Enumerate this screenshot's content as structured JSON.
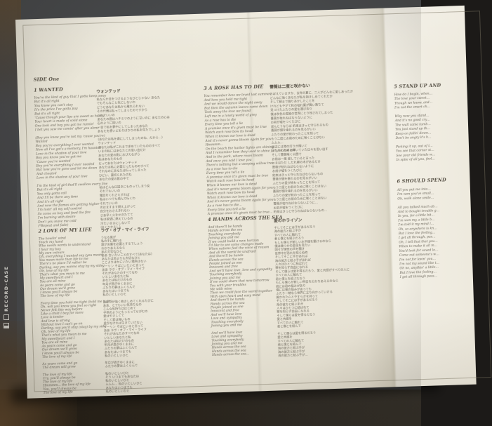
{
  "colors": {
    "paper": "#e9e5d7",
    "ink": "#6a655a",
    "backdrop": "#46484a",
    "table": "#282219"
  },
  "case": {
    "spine_label": "RECORD-CASE"
  },
  "sheet": {
    "side": "SIDE One",
    "songs": [
      {
        "title": "1 WANTED",
        "title_jp": "ウォンテッド",
        "lyrics_en": [
          "You're the kind of guy that I gotta keep away",
          "But it's all right",
          "You know you can't stay",
          "It's the price I've gotta pay",
          "But it's all right",
          "'Cause though your lips are sweet as honey",
          "Your heart is made of solid stone",
          "One look and boy you got me runnin'",
          "I bet you saw me comin' after you alone",
          "",
          "(Boy you know you're not my 'cause you're)",
          "Wanted",
          "Boy you're everything I ever wanted",
          "Now all I've got's a memory, I'm haunted",
          "Love in the shadow of your love",
          "Boy you know you've got me",
          "'Cause you're wanted",
          "Boy you're everything I ever needed",
          "But now you're gone and let me down",
          "And cheated",
          "Love in the shadow of your love",
          "",
          "I'm the kind of girl that'll swallow every line",
          "But it's all right",
          "You only gotta call",
          "And I'll be there any time",
          "And it's all right",
          "And now the flames are getting higher",
          "I'm losin' all my self control",
          "So come on boy and feed the fire",
          "I'm burning with desire",
          "Don't you leave me cold",
          "(*Repeat and fade)"
        ],
        "lyrics_jp": [
          "私なんか目をつけるようなひとじゃない あなた",
          "でもそんなこと気にしないわ",
          "どうせあなたは私から離れられない",
          "その代償は払ってしまったのですから",
          "これでいいの",
          "あなたの唇はハチミツのように甘いのに あなたの心は",
          "石のように固いの",
          "一目で私を夢中にしてしまったあなた",
          "あなたを想いどおりばかりの私を見たでしょう",
          "",
          "(あなたは私を虜にしてしまったのね、だから…)",
          "ウォンテッド",
          "あなたは私がこれまで求めていたもののすべて",
          "いまの私にはあなたとの思い出だけ",
          "あなたの愛の影におびえながら",
          "私はあなたのもの",
          "だってあなたはウォンテッド",
          "あなたは私に必要だったもののすべて",
          "それなのにあなたは行ってしまった",
          "ひどい、裏切られたのね",
          "あなたの愛の影の中で",
          "",
          "私はどんな口説きにものってしまう女",
          "それでもいいの",
          "電話をくれさえすれば",
          "私はいつでも飛んで行くわ",
          "それでいいの",
          "炎はますます燃え上がって",
          "自分をおさえきれない",
          "さあ早く火をかきたてて",
          "私は欲望に燃えているの",
          "冷たいままにしないで",
          "(※くりかえし)"
        ]
      },
      {
        "title": "2 LOVE OF MY LIFE",
        "title_jp": "ラヴ・オブ・マイ・ライフ",
        "lyrics_en": [
          "The howlin' wind",
          "Touch my hand",
          "Who needs words to understand",
          "I hear my boy",
          "My own colours",
          "Oh, everything I wanted say (you mean)",
          "You mean more than life to me",
          "There's no place I'd rather be",
          "Darling, say you wanna stay by my side",
          "Oh, love of my life",
          "That's what you mean to me",
          "My sweetheart and I",
          "You are all mine",
          "As years come and go",
          "Our dream we'll grow",
          "I know you'll always be",
          "The love of my life",
          "",
          "Every time you hold me tight (hold me tight)",
          "Oh, will you know you feel so right",
          "Never felt this way before",
          "Like a child I beg for more",
          "Love is tender",
          "And love is strong",
          "Without love I can't go on",
          "Darling, say you'll stay (stay) by my side",
          "Oh, love of my life",
          "That's what you mean to me",
          "My sweetheart and I",
          "You are all mine",
          "As years come and go",
          "Our dream we'll grow",
          "I know you'll always be",
          "The love of my life",
          "",
          "As years come and go",
          "The dream will grow",
          "",
          "The love of my life",
          "Cry, you'll always be",
          "The love of my life",
          "Hmmmm... the love of my life",
          "You, you'll always be",
          "The love of my life"
        ],
        "lyrics_jp": [
          "うなる風が",
          "私の手に触れる",
          "誰が言葉を必要とするでしょう",
          "わかりあえるなら",
          "私の大切なひと",
          "ああ 言いたいことのすべて(あなたは)",
          "あなたは命よりも大切なひと",
          "ここよりほかにいたい場所はない",
          "ダーリン そばにいたいと言って",
          "ああ ラヴ・オブ・マイ・ライフ",
          "それがあなたのすべてなの",
          "いとしいあなたと私",
          "あなたは私だけのもの",
          "年月が過ぎゆくままに",
          "ふたりの夢はふくらんで",
          "あなたはいつまでも",
          "私のいとしいひと",
          "",
          "あなたが強く抱きしめてくれるたびに",
          "ああ、とてもいい気持ちなの",
          "こんな気持ちははじめて",
          "子供のようにもっとってせがむの",
          "愛はやさしくて",
          "そして愛は強いもの",
          "愛がなければ生きていけない",
          "ダーリン そばにいると言って",
          "ああ ラヴ・オブ・マイ・ライフ",
          "それがあなたのすべてなの",
          "いとしいあなたと私",
          "あなたは私だけのもの",
          "年月が過ぎゆくままに",
          "ふたりの夢はふくらんで",
          "あなたはいつまでも",
          "私のいとしいひと",
          "",
          "年月が過ぎゆくままに",
          "ふたりの夢はふくらんで",
          "",
          "私のいとしいひと",
          "そう いつまでもあなたは",
          "私のいとしいひと",
          "ムムム… 私のいとしいひと",
          "あなたはいつまでも",
          "私のいとしいひと"
        ]
      },
      {
        "title": "3 A ROSE HAS TO DIE",
        "title_jp": "薔薇は二度と咲かない",
        "lyrics_en": [
          "You remember how we loved last summer",
          "And how you held me tight",
          "And we would dance the night away",
          "But then the autumn leaves came down",
          "Took away the love we found",
          "Left me in a lonely world of grey",
          "As a rose has to die",
          "Every time you tell a lie",
          "A promise once it's given must be true",
          "Watch each rose bow its head",
          "When it knows our love is dead",
          "And it's never gonna bloom again for you",
          "Hmmmm...",
          "On the beach the harbor lights are shining",
          "And I remember how they used to shine for you and me",
          "And in the park, where roses bloom",
          "And once you said I love you",
          "There's nothing but a weeping willow tree",
          "As a rose has to die",
          "Every time you tell a lie",
          "A promise once it's given must be true",
          "Watch each rose bow its head",
          "When it knows our love is dead",
          "And it's never gonna bloom again for you",
          "Watch each rose bow its head",
          "When it knows our love is dead",
          "And it's never gonna bloom again for you",
          "As a rose has to die...",
          "Every time you tell a lie",
          "A promise once it's given must be true..."
        ],
        "lyrics_jp": [
          "おぼえていますか、去年の夏に、二人がどんなに愛しあったか",
          "どんなに強くあなたが私を抱きしめてくれたか",
          "そして朝まで踊りあかしたことを",
          "けれどもやがて秋の枯れ葉が舞い落ちて",
          "見つけたふたりの愛を運び去り",
          "僕は灰色の孤独の世界にとり残されてしまった",
          "薔薇が枯れねばならないように",
          "お前が嘘をつくたびに",
          "ほんとうならば 約束はきっと守られるもの",
          "薔薇が頭を垂れるのを見るがいい",
          "ふたりの愛が終わったことを知って",
          "もう二度とお前のために咲くことはない",
          "ムムム…",
          "浜辺には港の灯りが輝いて",
          "ふたりのために輝いていた日々を思い出す",
          "そして薔薇咲く公園で",
          "お前は一度 愛していると言った",
          "いまはただ しだれ柳の木があるだけ",
          "薔薇が枯れねばならないように",
          "お前が嘘をつくたびに",
          "約束はきっと守られねばならないもの",
          "薔薇が頭を垂れるのを見るがいい",
          "ふたりの愛が終わったことを知って",
          "もう二度とお前のために咲くことはない",
          "薔薇が頭を垂れるのを見るがいい",
          "ふたりの愛が終わったことを知って",
          "もう二度とお前のために咲くことはない",
          "薔薇が枯れねばならないように…",
          "お前が嘘をつくたびに",
          "約束はきっと守られねばならないもの…"
        ]
      },
      {
        "title": "4 HANDS ACROSS THE SEA",
        "title_jp": "愛のホライゾン",
        "lyrics_en": [
          "And there'll be hands",
          "Hands across the sea",
          "Touching everybody",
          "Joining you and me",
          "If we could build a new horizon",
          "I'd like to see some changes made",
          "When nations feel the voice of reason",
          "And all the world be unafraid",
          "And there'll be hands",
          "Hands across the sea",
          "People joined as one",
          "Innocent and free",
          "And we'll have love, love and sympathy",
          "Touching everybody",
          "Joining you and me",
          "If we could share that new tomorrow",
          "You with your troubles",
          "Me with mine",
          "Then we could face the world together",
          "With open heart and easy mind",
          "And there'll be hands",
          "Hands across the sea",
          "People joined as one",
          "Innocent and free",
          "And we'll have love",
          "Love and sympathy",
          "Touching everybody",
          "Joining you and me",
          "",
          "And we'll have love",
          "Love and sympathy",
          "Touching everybody",
          "Joining you and me",
          "Hands across the sea",
          "Hands across the sea",
          "Hands across the sea..."
        ],
        "lyrics_jp": [
          "そしてそこには手があるだろう",
          "海の彼方と結ぶ手が",
          "すべての人に触れて",
          "君と僕とを結ぶだろう",
          "もしも僕らが新しい水平線を築けるのなら",
          "僕は幾つかの変化を見たい",
          "国々が理性の声を聞き",
          "世界中が恐れを知らぬ時",
          "そしてそこに手があれば",
          "海の彼方と結ぶ手があれば",
          "人々はひとつに結ばれて",
          "罪を知らず自由になれる",
          "そして僕らは愛を得るだろう、愛と共感がすべての人に",
          "すべての人に触れて",
          "君と僕とを結ぶだろう",
          "もしも僕らが新しい明日を分かちあえるのなら",
          "君には君の悩みがあり",
          "僕には僕の悩みがあっても",
          "ふたり一緒なら世界に立ち向かっていける",
          "開かれた心とやすらぎを持って",
          "そしてそこには手があるだろう",
          "海の彼方と結ぶ手が",
          "人々はひとつに結ばれて",
          "罪を知らず自由になれる",
          "そして僕らは愛を得るだろう",
          "愛と共感を",
          "すべての人に触れて",
          "君と僕とを結んで",
          "",
          "そして僕らは愛を得るだろう",
          "愛と共感を",
          "すべての人に触れて",
          "君と僕とを結んで",
          "海の彼方と結ぶ手が",
          "海の彼方と結ぶ手が",
          "海の彼方と結ぶ手が…"
        ]
      },
      {
        "title": "5 STAND UP AND",
        "lyrics_en": [
          "How do I begin, when…",
          "The love your sweet…",
          "Though we know, and…",
          "I'm not the smart ch…",
          "",
          "Why now you stand…",
          "And it's no good cry…",
          "The wall came tumb…",
          "You just stand up th…",
          "Keep on fallin' down…",
          "Don't be angry it's h…",
          "",
          "Picking it up, out of t…",
          "You see that corner st…",
          "See your old friends w…",
          "In spite of all you, feel…"
        ]
      },
      {
        "title": "6 SHOULD SPEND",
        "lyrics_en": [
          "All you put me into…",
          "I'm won you've small…",
          "Oh, walk alone smile…",
          "",
          "All you talked much ab…",
          "And to bought trouble g…",
          "In you, for a little bit…",
          "I'm won my, a little b…",
          "I'm told it my mind l…",
          "Oh, so anywhere is kn…",
          "But I love the feeling…",
          "I get all through, pas…",
          "Oh, I tell that that you…",
          "When to make it all m…",
          "You'd look for saved lo…",
          "Come out someone's w…",
          "I'm not for lovin' you…",
          "I'm not my sound like t…",
          "Oh no, anythin' a little…",
          "But I love the feeling…",
          "I get all through pass…"
        ]
      }
    ]
  }
}
